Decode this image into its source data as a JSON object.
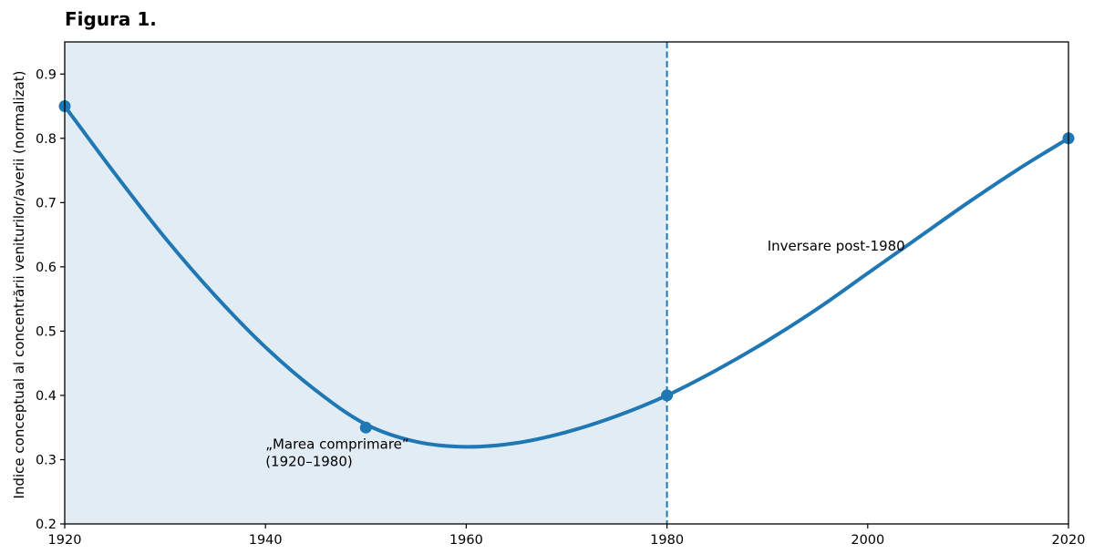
{
  "figure": {
    "title": "Figura 1."
  },
  "chart_data": {
    "type": "line",
    "title": "",
    "xlabel": "",
    "ylabel": "Indice conceptual al concentrării veniturilor/averii (normalizat)",
    "xlim": [
      1920,
      2020
    ],
    "ylim": [
      0.2,
      0.95
    ],
    "x_ticks": [
      1920,
      1940,
      1960,
      1980,
      2000,
      2020
    ],
    "y_ticks": [
      0.2,
      0.3,
      0.4,
      0.5,
      0.6,
      0.7,
      0.8,
      0.9
    ],
    "grid": false,
    "series": [
      {
        "color": "#1f77b4",
        "curve": [
          [
            1920,
            0.85
          ],
          [
            1925,
            0.745
          ],
          [
            1930,
            0.645
          ],
          [
            1935,
            0.555
          ],
          [
            1940,
            0.475
          ],
          [
            1945,
            0.408
          ],
          [
            1950,
            0.355
          ],
          [
            1955,
            0.328
          ],
          [
            1960,
            0.32
          ],
          [
            1965,
            0.326
          ],
          [
            1970,
            0.343
          ],
          [
            1975,
            0.368
          ],
          [
            1980,
            0.4
          ],
          [
            1985,
            0.44
          ],
          [
            1990,
            0.485
          ],
          [
            1995,
            0.535
          ],
          [
            2000,
            0.59
          ],
          [
            2005,
            0.645
          ],
          [
            2010,
            0.7
          ],
          [
            2015,
            0.752
          ],
          [
            2020,
            0.8
          ]
        ],
        "markers": [
          [
            1920,
            0.85
          ],
          [
            1950,
            0.35
          ],
          [
            1980,
            0.4
          ],
          [
            2020,
            0.8
          ]
        ]
      }
    ],
    "shaded_region": {
      "x": [
        1920,
        1980
      ],
      "color": "#e1ecf4"
    },
    "vertical_line": {
      "x": 1980,
      "style": "dashed",
      "color": "#1f77b4"
    },
    "annotations": [
      {
        "lines": [
          "„Marea comprimare”",
          "(1920–1980)"
        ],
        "x": 1940,
        "y": 0.29
      },
      {
        "lines": [
          "Inversare post-1980"
        ],
        "x": 1990,
        "y": 0.625
      }
    ]
  }
}
